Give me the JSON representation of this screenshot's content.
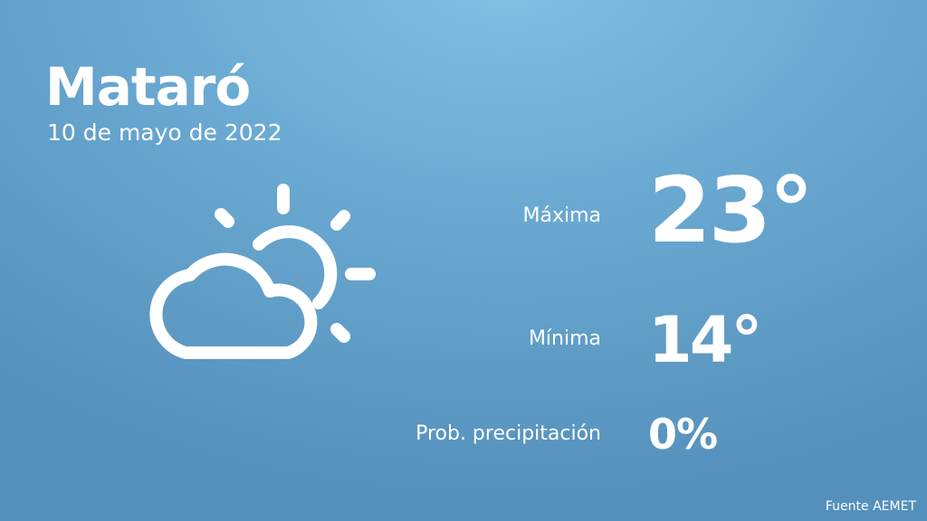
{
  "city": "Mataró",
  "date": "10 de mayo de 2022",
  "icon": "partly-cloudy-icon",
  "rows": [
    {
      "label": "Máxima",
      "value": "23°"
    },
    {
      "label": "Mínima",
      "value": "14°"
    },
    {
      "label": "Prob. precipitación",
      "value": "0%"
    }
  ],
  "source": "Fuente AEMET",
  "colors": {
    "bg_top": "#82c2e4",
    "bg_bottom": "#5490bb",
    "text": "#ffffff"
  }
}
